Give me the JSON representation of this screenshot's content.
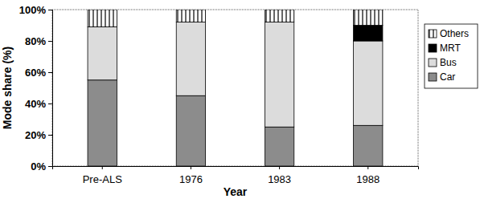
{
  "chart_data": {
    "type": "bar",
    "stacked": true,
    "x_label": "Year",
    "y_label": "Mode share (%)",
    "categories": [
      "Pre-ALS",
      "1976",
      "1983",
      "1988"
    ],
    "series": [
      {
        "name": "Car",
        "color": "#8c8c8c",
        "values": [
          55,
          45,
          25,
          26
        ]
      },
      {
        "name": "Bus",
        "color": "#dcdcdc",
        "values": [
          34,
          47,
          67,
          54
        ]
      },
      {
        "name": "MRT",
        "color": "#000000",
        "values": [
          0,
          0,
          0,
          10
        ]
      },
      {
        "name": "Others",
        "color": "#ffffff",
        "values": [
          11,
          8,
          8,
          10
        ]
      }
    ],
    "ylim": [
      0,
      100
    ],
    "yticks": [
      {
        "value": 0,
        "label": "0%"
      },
      {
        "value": 20,
        "label": "20%"
      },
      {
        "value": 40,
        "label": "40%"
      },
      {
        "value": 60,
        "label": "60%"
      },
      {
        "value": 80,
        "label": "80%"
      },
      {
        "value": 100,
        "label": "100%"
      }
    ],
    "legend": "right",
    "grid": false
  }
}
